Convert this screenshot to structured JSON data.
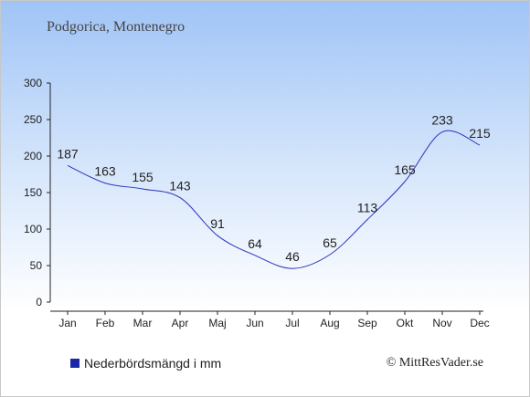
{
  "title": "Podgorica, Montenegro",
  "credit": "© MittResVader.se",
  "colors": {
    "line": "#2a33b8",
    "legend_swatch": "#1a28a8",
    "axis": "#222222"
  },
  "chart_data": {
    "type": "line",
    "categories": [
      "Jan",
      "Feb",
      "Mar",
      "Apr",
      "Maj",
      "Jun",
      "Jul",
      "Aug",
      "Sep",
      "Okt",
      "Nov",
      "Dec"
    ],
    "series": [
      {
        "name": "Nederbördsmängd i mm",
        "values": [
          187,
          163,
          155,
          143,
          91,
          64,
          46,
          65,
          113,
          165,
          233,
          215
        ]
      }
    ],
    "ylim": [
      0,
      300
    ],
    "yticks": [
      0,
      50,
      100,
      150,
      200,
      250,
      300
    ],
    "grid": false,
    "legend": "bottom-left",
    "data_labels": true
  }
}
